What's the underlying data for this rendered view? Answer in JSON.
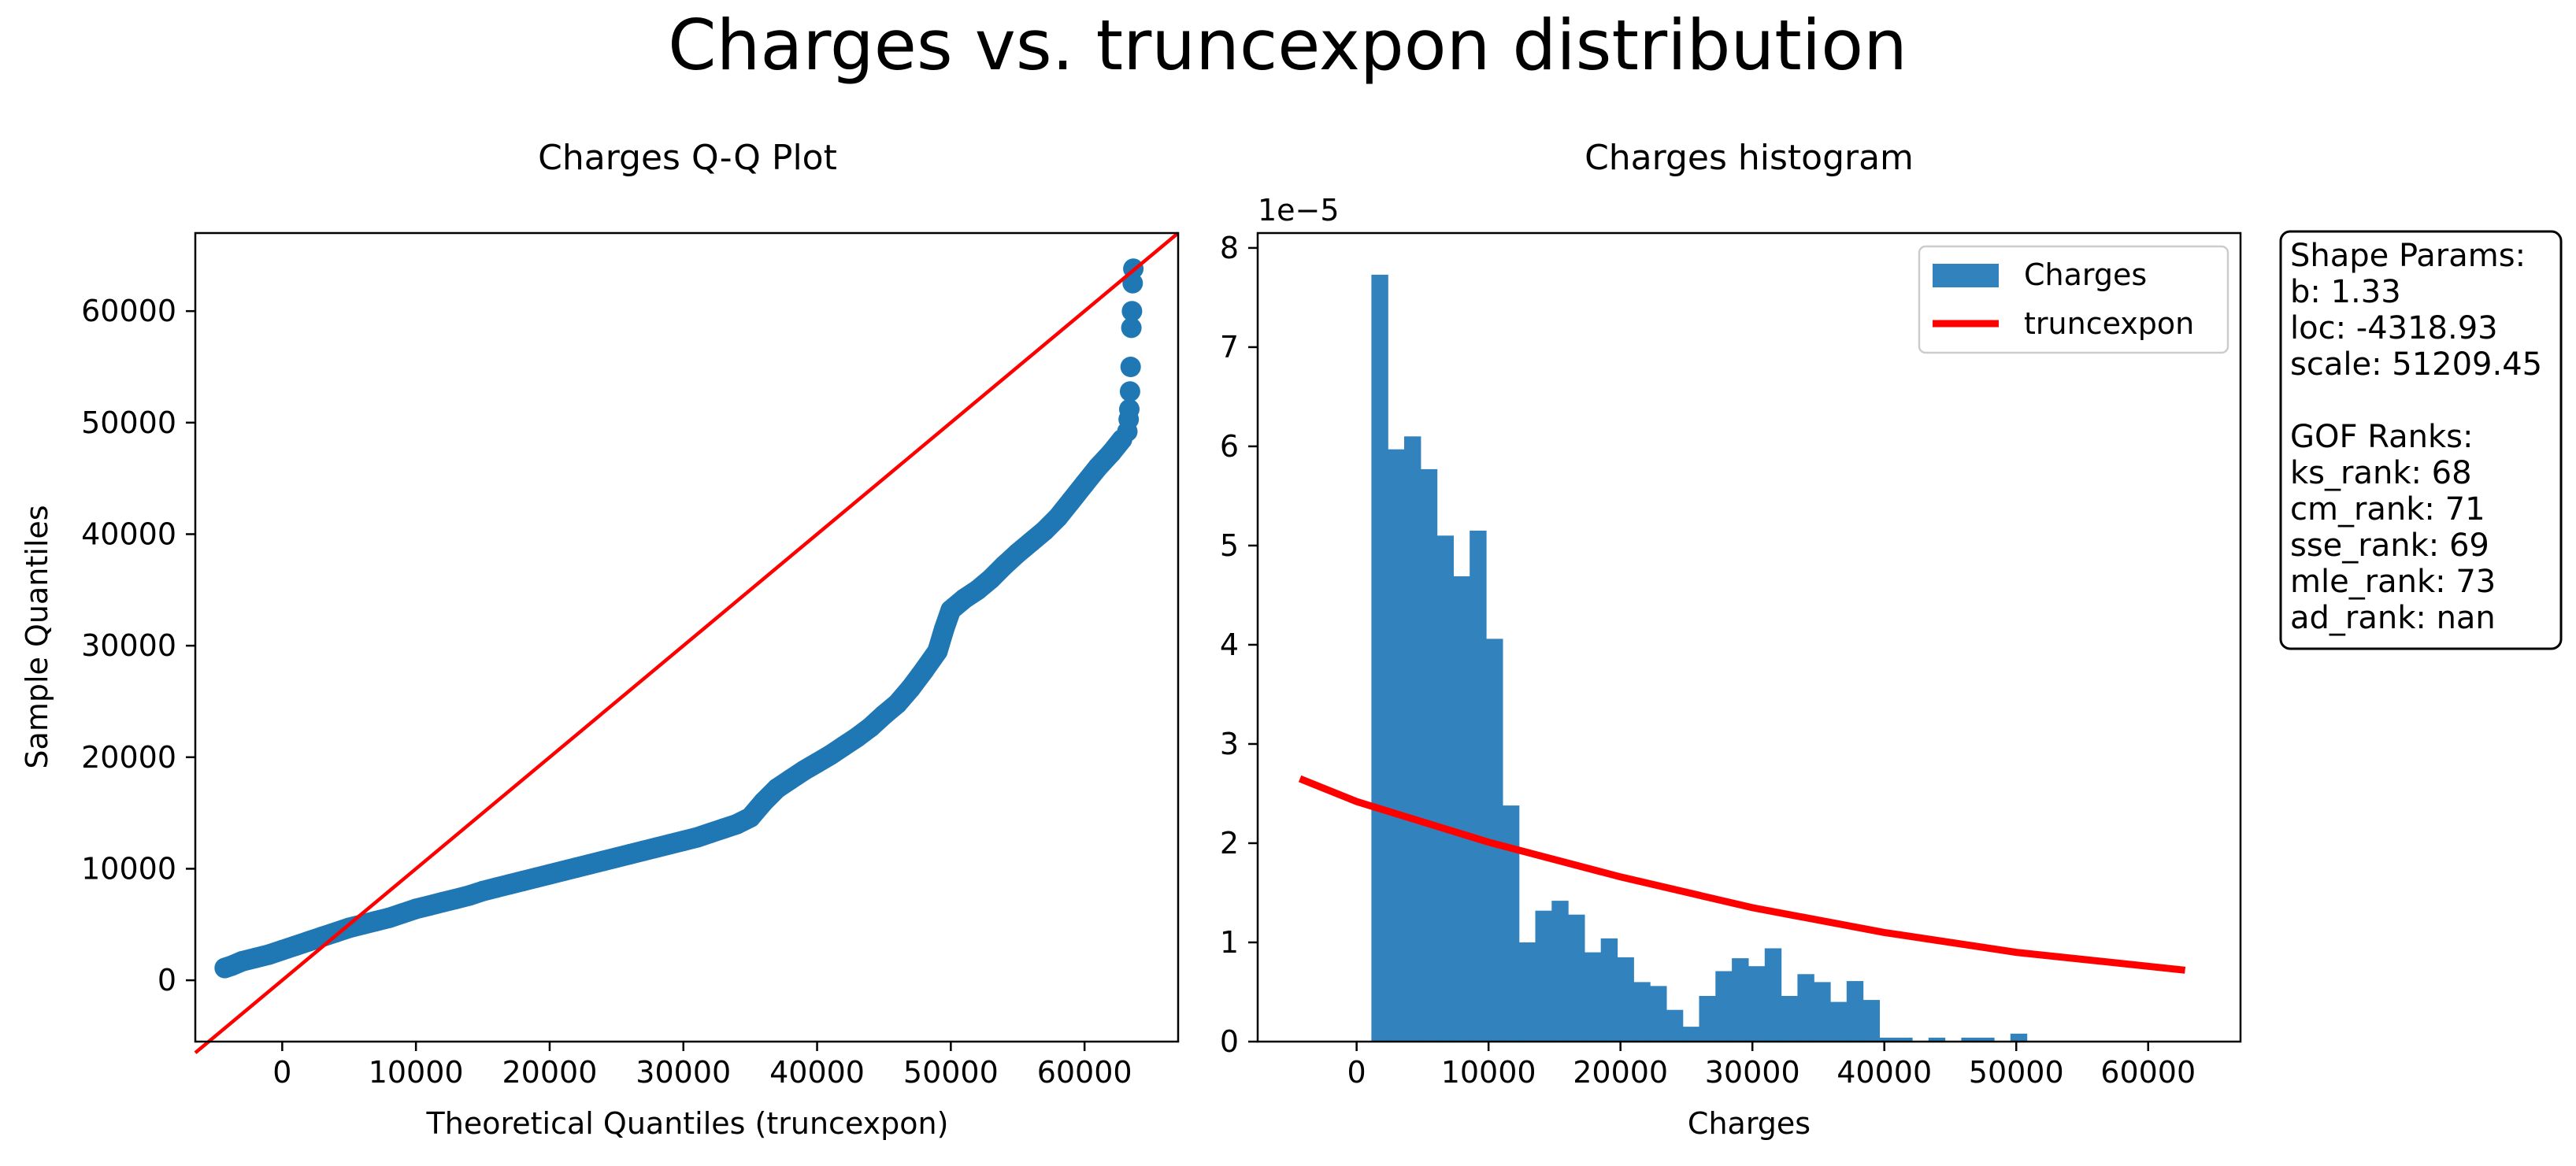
{
  "figure": {
    "title": "Charges vs. truncexpon distribution"
  },
  "chart_data": [
    {
      "type": "scatter",
      "title": "Charges Q-Q Plot",
      "xlabel": "Theoretical Quantiles (truncexpon)",
      "ylabel": "Sample Quantiles",
      "xlim": [
        -6500,
        67000
      ],
      "ylim": [
        -5500,
        67000
      ],
      "xticks": [
        0,
        10000,
        20000,
        30000,
        40000,
        50000,
        60000
      ],
      "xtick_labels": [
        "0",
        "10000",
        "20000",
        "30000",
        "40000",
        "50000",
        "60000"
      ],
      "yticks": [
        0,
        10000,
        20000,
        30000,
        40000,
        50000,
        60000
      ],
      "ytick_labels": [
        "0",
        "10000",
        "20000",
        "30000",
        "40000",
        "50000",
        "60000"
      ],
      "grid": false,
      "marker_color": "#1f77b4",
      "line_color": "#ff0000",
      "reference_line": {
        "from": [
          -6500,
          -6500
        ],
        "to": [
          67000,
          67000
        ]
      },
      "points": [
        [
          -4300,
          1100
        ],
        [
          -3800,
          1300
        ],
        [
          -3000,
          1700
        ],
        [
          -2000,
          2000
        ],
        [
          -1000,
          2300
        ],
        [
          0,
          2700
        ],
        [
          1000,
          3100
        ],
        [
          2000,
          3500
        ],
        [
          3000,
          3900
        ],
        [
          4000,
          4300
        ],
        [
          5000,
          4700
        ],
        [
          6000,
          5000
        ],
        [
          7000,
          5300
        ],
        [
          8000,
          5600
        ],
        [
          9000,
          6000
        ],
        [
          10000,
          6400
        ],
        [
          11000,
          6700
        ],
        [
          12000,
          7000
        ],
        [
          13000,
          7300
        ],
        [
          14000,
          7600
        ],
        [
          15000,
          8000
        ],
        [
          16000,
          8300
        ],
        [
          17000,
          8600
        ],
        [
          18000,
          8900
        ],
        [
          19000,
          9200
        ],
        [
          20000,
          9500
        ],
        [
          21000,
          9800
        ],
        [
          22000,
          10100
        ],
        [
          23000,
          10400
        ],
        [
          24000,
          10700
        ],
        [
          25000,
          11000
        ],
        [
          26000,
          11300
        ],
        [
          27000,
          11600
        ],
        [
          28000,
          11900
        ],
        [
          29000,
          12200
        ],
        [
          30000,
          12500
        ],
        [
          31000,
          12800
        ],
        [
          32000,
          13200
        ],
        [
          33000,
          13600
        ],
        [
          34000,
          14000
        ],
        [
          35000,
          14600
        ],
        [
          36000,
          16000
        ],
        [
          37000,
          17200
        ],
        [
          38000,
          18000
        ],
        [
          39000,
          18800
        ],
        [
          40000,
          19500
        ],
        [
          41000,
          20200
        ],
        [
          42000,
          21000
        ],
        [
          43000,
          21800
        ],
        [
          44000,
          22700
        ],
        [
          45000,
          23800
        ],
        [
          46000,
          24800
        ],
        [
          47000,
          26200
        ],
        [
          48000,
          27800
        ],
        [
          49000,
          29500
        ],
        [
          49500,
          31500
        ],
        [
          50000,
          33200
        ],
        [
          51000,
          34200
        ],
        [
          52000,
          35000
        ],
        [
          53000,
          36000
        ],
        [
          54000,
          37200
        ],
        [
          55000,
          38300
        ],
        [
          56000,
          39300
        ],
        [
          57000,
          40300
        ],
        [
          58000,
          41500
        ],
        [
          59000,
          43000
        ],
        [
          60000,
          44500
        ],
        [
          61000,
          46000
        ],
        [
          62000,
          47300
        ],
        [
          62800,
          48500
        ],
        [
          63200,
          49200
        ],
        [
          63300,
          50300
        ],
        [
          63350,
          51200
        ],
        [
          63400,
          52800
        ],
        [
          63450,
          55000
        ],
        [
          63500,
          58500
        ],
        [
          63550,
          60000
        ],
        [
          63600,
          62500
        ],
        [
          63650,
          63800
        ]
      ]
    },
    {
      "type": "bar",
      "title": "Charges histogram",
      "xlabel": "Charges",
      "ylabel": "",
      "y_offset_label": "1e−5",
      "xlim": [
        -7500,
        67000
      ],
      "ylim": [
        0,
        8.15
      ],
      "xticks": [
        0,
        10000,
        20000,
        30000,
        40000,
        50000,
        60000
      ],
      "xtick_labels": [
        "0",
        "10000",
        "20000",
        "30000",
        "40000",
        "50000",
        "60000"
      ],
      "yticks": [
        0,
        1,
        2,
        3,
        4,
        5,
        6,
        7,
        8
      ],
      "ytick_labels": [
        "0",
        "1",
        "2",
        "3",
        "4",
        "5",
        "6",
        "7",
        "8"
      ],
      "legend_position": "top-right",
      "grid": false,
      "bar_color": "#3182bd",
      "curve_color": "#ff0000",
      "bin_start": 1121,
      "bin_width": 1242,
      "bin_values": [
        7.73,
        5.97,
        6.1,
        5.77,
        5.1,
        4.69,
        5.15,
        4.06,
        2.38,
        1.0,
        1.32,
        1.42,
        1.28,
        0.9,
        1.04,
        0.85,
        0.6,
        0.56,
        0.32,
        0.15,
        0.46,
        0.71,
        0.84,
        0.76,
        0.94,
        0.46,
        0.68,
        0.6,
        0.4,
        0.61,
        0.42,
        0.04,
        0.04,
        0.0,
        0.04,
        0.0,
        0.04,
        0.04,
        0.0,
        0.08
      ],
      "series": [
        {
          "name": "Charges",
          "kind": "histogram"
        },
        {
          "name": "truncexpon",
          "kind": "line",
          "points": [
            [
              -4300,
              2.65
            ],
            [
              0,
              2.42
            ],
            [
              10000,
              2.01
            ],
            [
              20000,
              1.66
            ],
            [
              30000,
              1.35
            ],
            [
              40000,
              1.1
            ],
            [
              50000,
              0.9
            ],
            [
              62800,
              0.72
            ]
          ]
        }
      ]
    }
  ],
  "params_box": {
    "lines": [
      "Shape Params:",
      "b: 1.33",
      "loc: -4318.93",
      "scale: 51209.45",
      "",
      "GOF Ranks:",
      "ks_rank: 68",
      "cm_rank: 71",
      "sse_rank: 69",
      "mle_rank: 73",
      "ad_rank: nan"
    ]
  }
}
